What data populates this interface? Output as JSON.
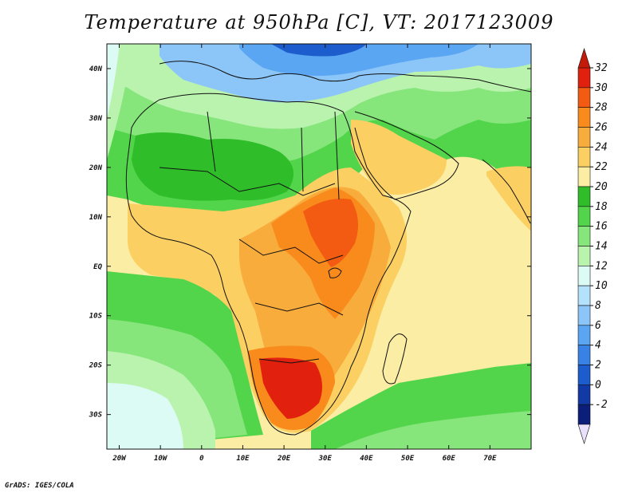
{
  "title": "Temperature at 950hPa [C], VT: 2017123009",
  "credit": "GrADS: IGES/COLA",
  "map": {
    "lon_range": [
      -23,
      80
    ],
    "lat_range": [
      -37,
      45
    ],
    "lat_labels": [
      "40N",
      "30N",
      "20N",
      "10N",
      "EQ",
      "10S",
      "20S",
      "30S"
    ],
    "lat_values": [
      40,
      30,
      20,
      10,
      0,
      -10,
      -20,
      -30
    ],
    "lon_labels": [
      "20W",
      "10W",
      "0",
      "10E",
      "20E",
      "30E",
      "40E",
      "50E",
      "60E",
      "70E"
    ],
    "lon_values": [
      -20,
      -10,
      0,
      10,
      20,
      30,
      40,
      50,
      60,
      70
    ]
  },
  "colorbar": {
    "labels": [
      "32",
      "30",
      "28",
      "26",
      "24",
      "22",
      "20",
      "18",
      "16",
      "14",
      "12",
      "10",
      "8",
      "6",
      "4",
      "2",
      "0",
      "-2"
    ],
    "colors": [
      "#e1200e",
      "#f35a12",
      "#f98b1d",
      "#f8ac3b",
      "#fbcf62",
      "#fbeda3",
      "#2fbd2a",
      "#52d54a",
      "#86e57b",
      "#b9f3ae",
      "#dcfbf4",
      "#b4e1fb",
      "#8cc5f7",
      "#5aa6f3",
      "#3882e6",
      "#1d5ccc",
      "#123aa6",
      "#0b1f7a"
    ],
    "top_arrow": "#c41a0a",
    "bottom_arrow": "#e9e0fc"
  }
}
